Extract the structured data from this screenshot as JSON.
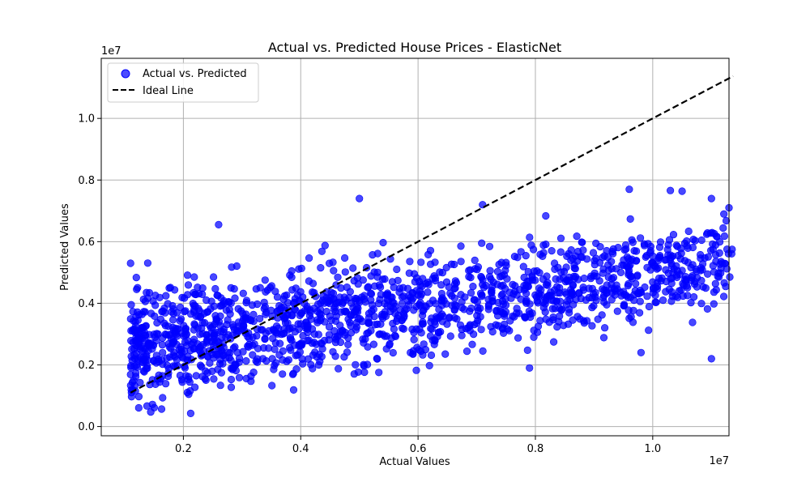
{
  "chart_data": {
    "type": "scatter",
    "title": "Actual vs. Predicted House Prices - ElasticNet",
    "xlabel": "Actual Values",
    "ylabel": "Predicted Values",
    "x_offset_label": "1e7",
    "y_offset_label": "1e7",
    "xlim": [
      0.06,
      1.13
    ],
    "ylim": [
      -0.03,
      1.195
    ],
    "x_ticks": [
      0.2,
      0.4,
      0.6,
      0.8,
      1.0
    ],
    "x_tick_labels": [
      "0.2",
      "0.4",
      "0.6",
      "0.8",
      "1.0"
    ],
    "y_ticks": [
      0.0,
      0.2,
      0.4,
      0.6,
      0.8,
      1.0
    ],
    "y_tick_labels": [
      "0.0",
      "0.2",
      "0.4",
      "0.6",
      "0.8",
      "1.0"
    ],
    "grid": true,
    "legend_position": "top-left",
    "colors": {
      "points": "#0000ff",
      "ideal_line": "#000000"
    },
    "series": [
      {
        "name": "Actual vs. Predicted",
        "kind": "scatter",
        "x_range": [
          0.11,
          1.137
        ],
        "trend": {
          "at_x_min": 0.26,
          "at_x_max": 0.53
        },
        "spread_y": 0.09,
        "outliers": [
          {
            "x": 0.5,
            "y": 0.74
          },
          {
            "x": 0.71,
            "y": 0.72
          },
          {
            "x": 0.96,
            "y": 0.77
          },
          {
            "x": 1.03,
            "y": 0.766
          },
          {
            "x": 1.05,
            "y": 0.764
          },
          {
            "x": 1.1,
            "y": 0.74
          },
          {
            "x": 1.1,
            "y": 0.22
          },
          {
            "x": 0.79,
            "y": 0.19
          },
          {
            "x": 0.98,
            "y": 0.24
          },
          {
            "x": 1.13,
            "y": 0.71
          },
          {
            "x": 0.26,
            "y": 0.655
          },
          {
            "x": 0.11,
            "y": 0.53
          }
        ]
      },
      {
        "name": "Ideal Line",
        "kind": "line",
        "style": "dashed",
        "points": [
          [
            0.11,
            0.11
          ],
          [
            1.137,
            1.137
          ]
        ]
      }
    ]
  }
}
